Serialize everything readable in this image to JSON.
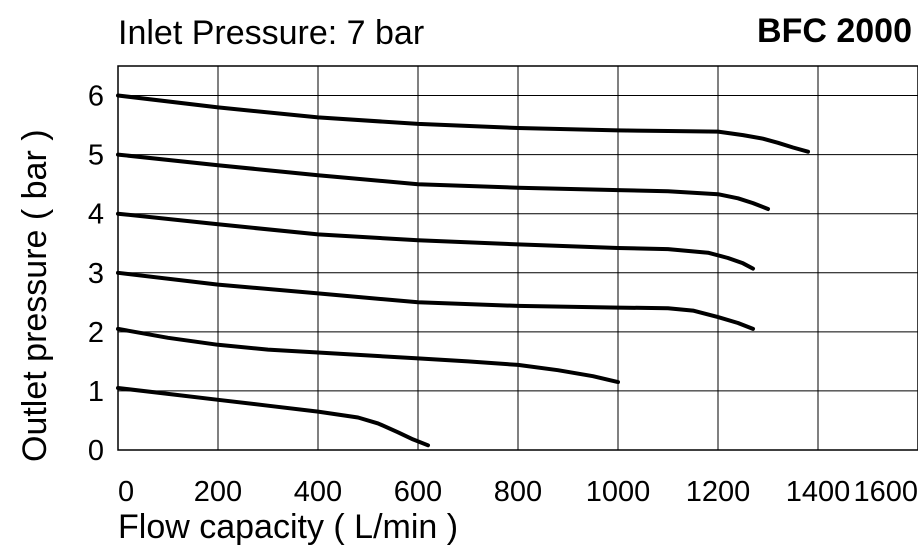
{
  "chart_data": {
    "type": "line",
    "title": "BFC 2000",
    "subtitle": "Inlet Pressure: 7 bar",
    "xlabel": "Flow capacity ( L/min )",
    "ylabel": "Outlet pressure ( bar )",
    "xlim": [
      0,
      1600
    ],
    "ylim": [
      0,
      6.5
    ],
    "x_ticks": [
      "0",
      "200",
      "400",
      "600",
      "800",
      "1000",
      "1200",
      "1400",
      "1600"
    ],
    "y_ticks": [
      "0",
      "1",
      "2",
      "3",
      "4",
      "5",
      "6"
    ],
    "grid": true,
    "series": [
      {
        "x": [
          0,
          200,
          400,
          600,
          800,
          1000,
          1100,
          1200,
          1250,
          1290,
          1320,
          1350,
          1380
        ],
        "y": [
          6.0,
          5.8,
          5.63,
          5.52,
          5.45,
          5.41,
          5.4,
          5.39,
          5.33,
          5.27,
          5.2,
          5.12,
          5.05
        ]
      },
      {
        "x": [
          0,
          200,
          400,
          600,
          800,
          1000,
          1100,
          1200,
          1240,
          1270,
          1300
        ],
        "y": [
          5.0,
          4.82,
          4.65,
          4.5,
          4.44,
          4.4,
          4.38,
          4.33,
          4.26,
          4.18,
          4.08
        ]
      },
      {
        "x": [
          0,
          200,
          400,
          600,
          800,
          1000,
          1100,
          1180,
          1220,
          1250,
          1270
        ],
        "y": [
          4.0,
          3.82,
          3.65,
          3.55,
          3.48,
          3.42,
          3.4,
          3.34,
          3.25,
          3.16,
          3.07
        ]
      },
      {
        "x": [
          0,
          200,
          400,
          600,
          800,
          1000,
          1100,
          1150,
          1200,
          1240,
          1270
        ],
        "y": [
          3.0,
          2.8,
          2.65,
          2.5,
          2.44,
          2.41,
          2.4,
          2.36,
          2.25,
          2.15,
          2.05
        ]
      },
      {
        "x": [
          0,
          100,
          200,
          300,
          400,
          600,
          700,
          800,
          880,
          950,
          1000
        ],
        "y": [
          2.05,
          1.9,
          1.78,
          1.7,
          1.65,
          1.55,
          1.5,
          1.44,
          1.35,
          1.25,
          1.15
        ]
      },
      {
        "x": [
          0,
          100,
          200,
          300,
          400,
          480,
          520,
          560,
          590,
          620
        ],
        "y": [
          1.05,
          0.95,
          0.85,
          0.75,
          0.65,
          0.55,
          0.45,
          0.3,
          0.18,
          0.08
        ]
      }
    ]
  }
}
